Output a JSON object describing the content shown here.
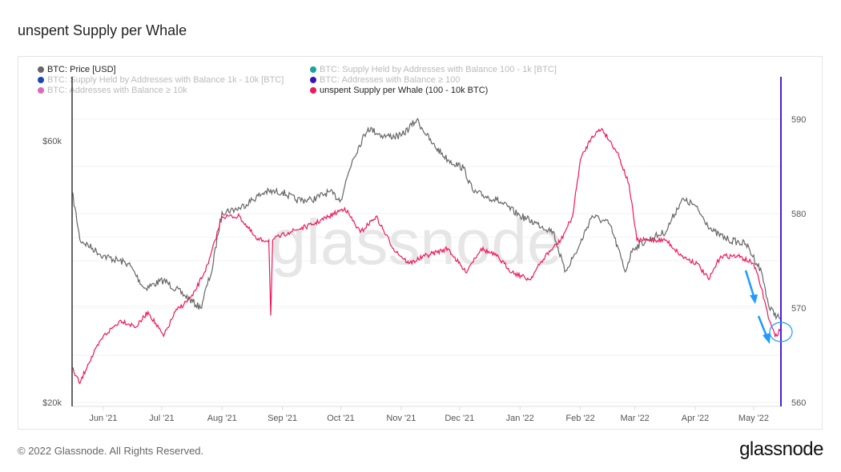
{
  "title": "unspent Supply per Whale",
  "footer": "© 2022 Glassnode. All Rights Reserved.",
  "brand": "glassnode",
  "watermark": "glassnode",
  "legend": [
    {
      "label": "BTC: Price [USD]",
      "color": "#666666",
      "active": true
    },
    {
      "label": "BTC: Supply Held by Addresses with Balance 100 - 1k [BTC]",
      "color": "#1aa39a",
      "active": false
    },
    {
      "label": "BTC: Supply Held by Addresses with Balance 1k - 10k [BTC]",
      "color": "#1a47b8",
      "active": false
    },
    {
      "label": "BTC: Addresses with Balance ≥ 100",
      "color": "#3d12c4",
      "active": false
    },
    {
      "label": "BTC: Addresses with Balance ≥ 10k",
      "color": "#d96cb5",
      "active": false
    },
    {
      "label": "unspent Supply per Whale (100 - 10k BTC)",
      "color": "#f0175a",
      "active": true
    }
  ],
  "chart_data": {
    "type": "line",
    "title": "unspent Supply per Whale",
    "x_origin_date": "2021-05-16",
    "x_unit": "days since origin",
    "xlim": [
      0,
      364
    ],
    "x_ticks": [
      {
        "label": "Jun '21",
        "day": 16
      },
      {
        "label": "Jul '21",
        "day": 46
      },
      {
        "label": "Aug '21",
        "day": 77
      },
      {
        "label": "Sep '21",
        "day": 108
      },
      {
        "label": "Oct '21",
        "day": 138
      },
      {
        "label": "Nov '21",
        "day": 169
      },
      {
        "label": "Dec '21",
        "day": 199
      },
      {
        "label": "Jan '22",
        "day": 230
      },
      {
        "label": "Feb '22",
        "day": 261
      },
      {
        "label": "Mar '22",
        "day": 289
      },
      {
        "label": "Apr '22",
        "day": 320
      },
      {
        "label": "May '22",
        "day": 350
      }
    ],
    "y_left": {
      "scale": "log",
      "lim": [
        20000,
        60000
      ],
      "ticks": [
        {
          "label": "$20k",
          "value": 20000
        },
        {
          "label": "$60k",
          "value": 60000
        }
      ]
    },
    "y_right": {
      "scale": "linear",
      "lim": [
        560,
        590
      ],
      "ticks": [
        {
          "label": "560",
          "value": 560
        },
        {
          "label": "570",
          "value": 570
        },
        {
          "label": "580",
          "value": 580
        },
        {
          "label": "590",
          "value": 590
        }
      ]
    },
    "grid": true,
    "series": [
      {
        "name": "BTC: Price [USD]",
        "axis": "left",
        "color": "#666666",
        "points": [
          [
            0,
            48400
          ],
          [
            4,
            39600
          ],
          [
            16,
            37000
          ],
          [
            29,
            35800
          ],
          [
            37,
            32300
          ],
          [
            47,
            33400
          ],
          [
            58,
            31300
          ],
          [
            66,
            29700
          ],
          [
            72,
            35000
          ],
          [
            77,
            44500
          ],
          [
            86,
            45200
          ],
          [
            99,
            48400
          ],
          [
            108,
            48400
          ],
          [
            115,
            46800
          ],
          [
            123,
            46800
          ],
          [
            132,
            48400
          ],
          [
            138,
            46800
          ],
          [
            144,
            55400
          ],
          [
            152,
            63300
          ],
          [
            160,
            61200
          ],
          [
            169,
            61200
          ],
          [
            177,
            65500
          ],
          [
            185,
            59200
          ],
          [
            193,
            55400
          ],
          [
            201,
            53500
          ],
          [
            206,
            48400
          ],
          [
            218,
            46800
          ],
          [
            230,
            43800
          ],
          [
            239,
            42300
          ],
          [
            247,
            41000
          ],
          [
            253,
            34600
          ],
          [
            260,
            38200
          ],
          [
            267,
            43800
          ],
          [
            276,
            42300
          ],
          [
            284,
            34600
          ],
          [
            288,
            38200
          ],
          [
            296,
            39600
          ],
          [
            305,
            41000
          ],
          [
            313,
            46800
          ],
          [
            319,
            46000
          ],
          [
            329,
            41000
          ],
          [
            337,
            39600
          ],
          [
            346,
            38900
          ],
          [
            354,
            34600
          ],
          [
            358,
            29700
          ],
          [
            364,
            28300
          ]
        ]
      },
      {
        "name": "unspent Supply per Whale (100 - 10k BTC)",
        "axis": "right",
        "color": "#f0175a",
        "points": [
          [
            0,
            563.6
          ],
          [
            4,
            562
          ],
          [
            8,
            564
          ],
          [
            16,
            567
          ],
          [
            25,
            568.7
          ],
          [
            33,
            568
          ],
          [
            39,
            569.6
          ],
          [
            47,
            567
          ],
          [
            53,
            569.6
          ],
          [
            62,
            571.3
          ],
          [
            70,
            574.7
          ],
          [
            77,
            579.7
          ],
          [
            86,
            579.7
          ],
          [
            95,
            577.2
          ],
          [
            101,
            577.2
          ],
          [
            102,
            569.2
          ],
          [
            103,
            577.2
          ],
          [
            111,
            578
          ],
          [
            123,
            578.8
          ],
          [
            132,
            579.7
          ],
          [
            140,
            580.6
          ],
          [
            148,
            578
          ],
          [
            156,
            579.7
          ],
          [
            165,
            576.3
          ],
          [
            173,
            574.7
          ],
          [
            181,
            575.5
          ],
          [
            193,
            576.3
          ],
          [
            202,
            573.8
          ],
          [
            210,
            576.3
          ],
          [
            218,
            575.5
          ],
          [
            226,
            573.8
          ],
          [
            235,
            573
          ],
          [
            243,
            575.5
          ],
          [
            251,
            577.2
          ],
          [
            257,
            579.7
          ],
          [
            261,
            585.7
          ],
          [
            267,
            588.2
          ],
          [
            272,
            589
          ],
          [
            280,
            586.5
          ],
          [
            286,
            583.1
          ],
          [
            290,
            577.2
          ],
          [
            296,
            577.2
          ],
          [
            305,
            577.2
          ],
          [
            313,
            575.5
          ],
          [
            321,
            574.7
          ],
          [
            327,
            573
          ],
          [
            333,
            575.5
          ],
          [
            342,
            575.5
          ],
          [
            350,
            574.7
          ],
          [
            354,
            572.1
          ],
          [
            358,
            568.7
          ],
          [
            361,
            567
          ],
          [
            364,
            567.8
          ]
        ]
      }
    ]
  }
}
